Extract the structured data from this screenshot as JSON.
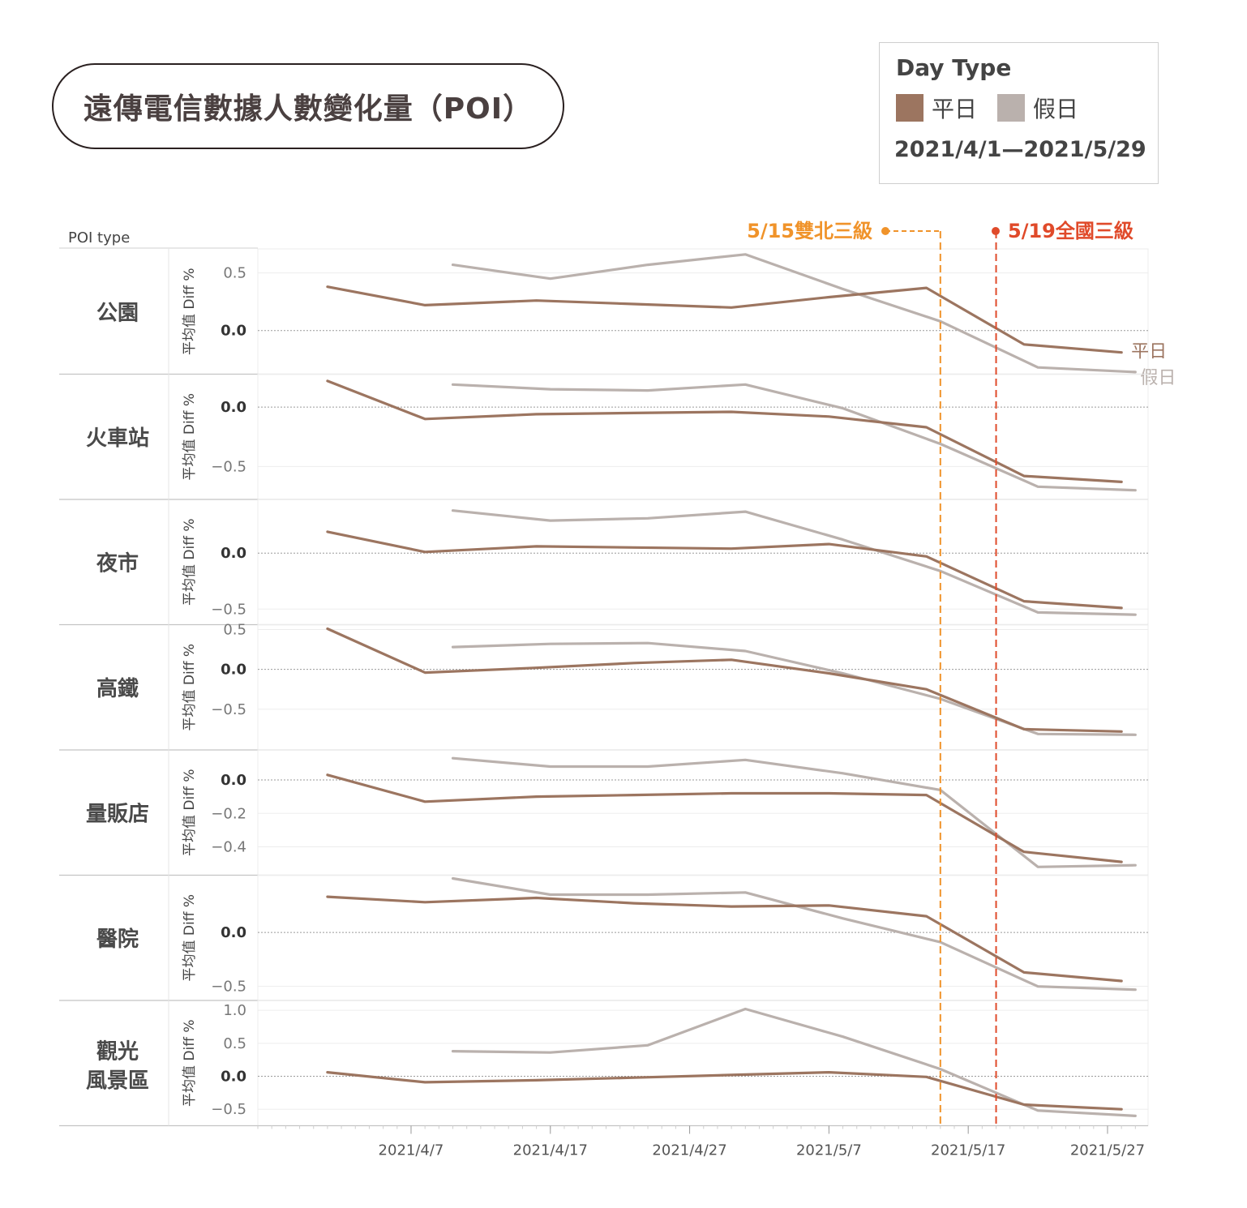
{
  "title": "遠傳電信數據人數變化量（POI）",
  "legend": {
    "title": "Day Type",
    "items": [
      {
        "label": "平日",
        "color": "#9c7560"
      },
      {
        "label": "假日",
        "color": "#bab1ad"
      }
    ],
    "date_range": "2021/4/1—2021/5/29"
  },
  "annotations": [
    {
      "label": "5/15雙北三級",
      "date": "2021-05-15",
      "color": "#f0932a"
    },
    {
      "label": "5/19全國三級",
      "date": "2021-05-19",
      "color": "#e04a2a"
    }
  ],
  "chart_data": {
    "type": "line",
    "row_header": "POI type",
    "ylabel": "平均值 Diff %",
    "x_ticks": [
      "2021/4/7",
      "2021/4/17",
      "2021/4/27",
      "2021/5/7",
      "2021/5/17",
      "2021/5/27"
    ],
    "series_names": [
      "平日",
      "假日"
    ],
    "series_end_labels": [
      "平日",
      "假日"
    ],
    "panels": [
      {
        "name": "公園",
        "ylim": [
          -0.35,
          0.68
        ],
        "ticks": [
          "0.5",
          "0.0"
        ],
        "weekday": {
          "x": [
            "2021-04-01",
            "2021-04-08",
            "2021-04-16",
            "2021-04-23",
            "2021-04-30",
            "2021-05-07",
            "2021-05-14",
            "2021-05-21",
            "2021-05-28"
          ],
          "y": [
            0.38,
            0.22,
            0.26,
            0.23,
            0.2,
            0.29,
            0.37,
            -0.12,
            -0.19
          ]
        },
        "weekend": {
          "x": [
            "2021-04-10",
            "2021-04-17",
            "2021-04-24",
            "2021-05-01",
            "2021-05-08",
            "2021-05-15",
            "2021-05-22",
            "2021-05-29"
          ],
          "y": [
            0.57,
            0.45,
            0.57,
            0.66,
            0.36,
            0.08,
            -0.32,
            -0.36
          ]
        }
      },
      {
        "name": "火車站",
        "ylim": [
          -0.75,
          0.25
        ],
        "ticks": [
          "0.0",
          "−0.5"
        ],
        "weekday": {
          "x": [
            "2021-04-01",
            "2021-04-08",
            "2021-04-16",
            "2021-04-23",
            "2021-04-30",
            "2021-05-07",
            "2021-05-14",
            "2021-05-21",
            "2021-05-28"
          ],
          "y": [
            0.22,
            -0.1,
            -0.06,
            -0.05,
            -0.04,
            -0.08,
            -0.17,
            -0.58,
            -0.63
          ]
        },
        "weekend": {
          "x": [
            "2021-04-10",
            "2021-04-17",
            "2021-04-24",
            "2021-05-01",
            "2021-05-08",
            "2021-05-15",
            "2021-05-22",
            "2021-05-29"
          ],
          "y": [
            0.19,
            0.15,
            0.14,
            0.19,
            -0.01,
            -0.31,
            -0.67,
            -0.7
          ]
        }
      },
      {
        "name": "夜市",
        "ylim": [
          -0.61,
          0.45
        ],
        "ticks": [
          "0.0",
          "−0.5"
        ],
        "weekday": {
          "x": [
            "2021-04-01",
            "2021-04-08",
            "2021-04-16",
            "2021-04-23",
            "2021-04-30",
            "2021-05-07",
            "2021-05-14",
            "2021-05-21",
            "2021-05-28"
          ],
          "y": [
            0.19,
            0.01,
            0.06,
            0.05,
            0.04,
            0.08,
            -0.03,
            -0.43,
            -0.49
          ]
        },
        "weekend": {
          "x": [
            "2021-04-10",
            "2021-04-17",
            "2021-04-24",
            "2021-05-01",
            "2021-05-08",
            "2021-05-15",
            "2021-05-22",
            "2021-05-29"
          ],
          "y": [
            0.38,
            0.29,
            0.31,
            0.37,
            0.12,
            -0.16,
            -0.53,
            -0.55
          ]
        }
      },
      {
        "name": "高鐵",
        "ylim": [
          -0.97,
          0.52
        ],
        "ticks": [
          "0.5",
          "0.0",
          "−0.5"
        ],
        "weekday": {
          "x": [
            "2021-04-01",
            "2021-04-08",
            "2021-04-16",
            "2021-04-23",
            "2021-04-30",
            "2021-05-07",
            "2021-05-14",
            "2021-05-21",
            "2021-05-28"
          ],
          "y": [
            0.51,
            -0.04,
            0.02,
            0.08,
            0.12,
            -0.05,
            -0.25,
            -0.75,
            -0.78
          ]
        },
        "weekend": {
          "x": [
            "2021-04-10",
            "2021-04-17",
            "2021-04-24",
            "2021-05-01",
            "2021-05-08",
            "2021-05-15",
            "2021-05-22",
            "2021-05-29"
          ],
          "y": [
            0.28,
            0.32,
            0.33,
            0.23,
            -0.05,
            -0.37,
            -0.81,
            -0.82
          ]
        }
      },
      {
        "name": "量販店",
        "ylim": [
          -0.55,
          0.16
        ],
        "ticks": [
          "0.0",
          "−0.2",
          "−0.4"
        ],
        "weekday": {
          "x": [
            "2021-04-01",
            "2021-04-08",
            "2021-04-16",
            "2021-04-23",
            "2021-04-30",
            "2021-05-07",
            "2021-05-14",
            "2021-05-21",
            "2021-05-28"
          ],
          "y": [
            0.03,
            -0.13,
            -0.1,
            -0.09,
            -0.08,
            -0.08,
            -0.09,
            -0.43,
            -0.49
          ]
        },
        "weekend": {
          "x": [
            "2021-04-10",
            "2021-04-17",
            "2021-04-24",
            "2021-05-01",
            "2021-05-08",
            "2021-05-15",
            "2021-05-22",
            "2021-05-29"
          ],
          "y": [
            0.13,
            0.08,
            0.08,
            0.12,
            0.04,
            -0.06,
            -0.52,
            -0.51
          ]
        }
      },
      {
        "name": "醫院",
        "ylim": [
          -0.6,
          0.5
        ],
        "ticks": [
          "0.0",
          "−0.5"
        ],
        "weekday": {
          "x": [
            "2021-04-01",
            "2021-04-08",
            "2021-04-16",
            "2021-04-23",
            "2021-04-30",
            "2021-05-07",
            "2021-05-14",
            "2021-05-21",
            "2021-05-28"
          ],
          "y": [
            0.33,
            0.28,
            0.32,
            0.27,
            0.24,
            0.25,
            0.15,
            -0.37,
            -0.45
          ]
        },
        "weekend": {
          "x": [
            "2021-04-10",
            "2021-04-17",
            "2021-04-24",
            "2021-05-01",
            "2021-05-08",
            "2021-05-15",
            "2021-05-22",
            "2021-05-29"
          ],
          "y": [
            0.5,
            0.35,
            0.35,
            0.37,
            0.13,
            -0.09,
            -0.5,
            -0.53
          ]
        }
      },
      {
        "name": "觀光風景區",
        "ylim": [
          -0.7,
          1.1
        ],
        "ticks": [
          "1.0",
          "0.5",
          "0.0",
          "−0.5"
        ],
        "weekday": {
          "x": [
            "2021-04-01",
            "2021-04-08",
            "2021-04-16",
            "2021-04-23",
            "2021-04-30",
            "2021-05-07",
            "2021-05-14",
            "2021-05-21",
            "2021-05-28"
          ],
          "y": [
            0.06,
            -0.09,
            -0.06,
            -0.02,
            0.02,
            0.06,
            -0.01,
            -0.43,
            -0.5
          ]
        },
        "weekend": {
          "x": [
            "2021-04-10",
            "2021-04-17",
            "2021-04-24",
            "2021-05-01",
            "2021-05-08",
            "2021-05-15",
            "2021-05-22",
            "2021-05-29"
          ],
          "y": [
            0.38,
            0.36,
            0.47,
            1.02,
            0.6,
            0.11,
            -0.52,
            -0.6
          ]
        }
      }
    ]
  }
}
